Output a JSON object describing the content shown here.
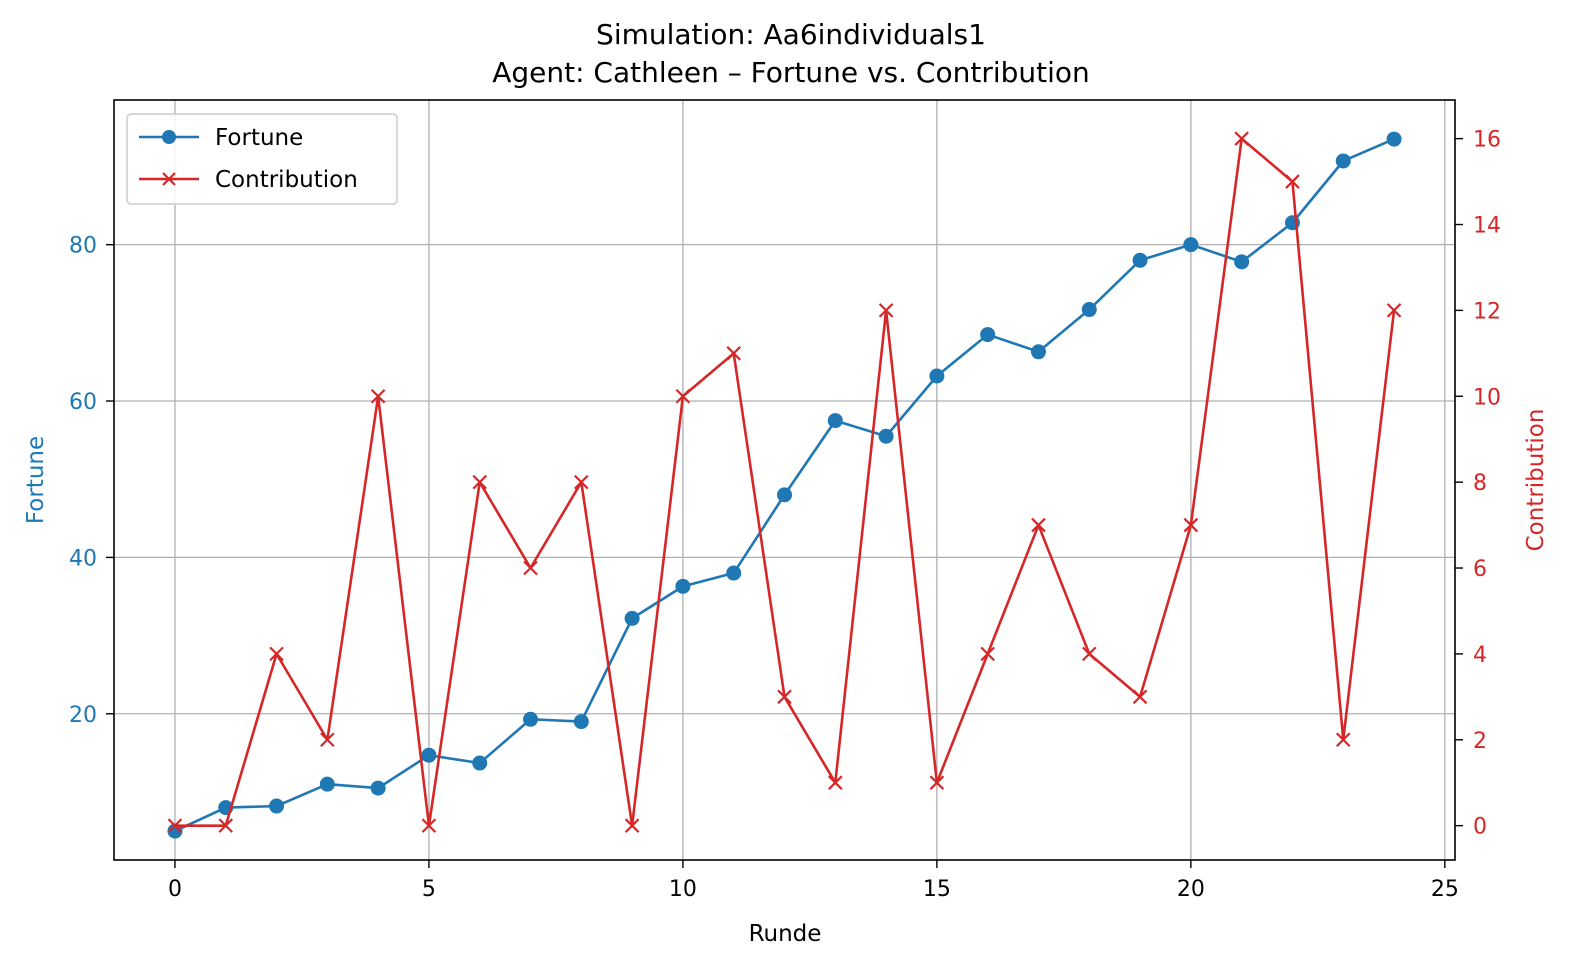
{
  "chart_data": {
    "type": "line",
    "title": "Simulation: Aa6individuals1",
    "subtitle": "Agent: Cathleen – Fortune vs. Contribution",
    "xlabel": "Runde",
    "ylabel_left": "Fortune",
    "ylabel_right": "Contribution",
    "x": [
      0,
      1,
      2,
      3,
      4,
      5,
      6,
      7,
      8,
      9,
      10,
      11,
      12,
      13,
      14,
      15,
      16,
      17,
      18,
      19,
      20,
      21,
      22,
      23,
      24
    ],
    "xlim": [
      -1.2,
      25.2
    ],
    "ylim_left": [
      1.3,
      98.5
    ],
    "ylim_right": [
      -0.8,
      16.9
    ],
    "xticks": [
      0,
      5,
      10,
      15,
      20,
      25
    ],
    "yticks_left": [
      20,
      40,
      60,
      80
    ],
    "yticks_right": [
      0,
      2,
      4,
      6,
      8,
      10,
      12,
      14,
      16
    ],
    "grid": true,
    "legend_position": "upper-left",
    "series": [
      {
        "name": "Fortune",
        "axis": "left",
        "color": "#1f77b4",
        "marker": "circle",
        "values": [
          5.0,
          8.0,
          8.2,
          11.0,
          10.5,
          14.7,
          13.7,
          19.3,
          19.0,
          32.2,
          36.3,
          38.0,
          48.0,
          57.5,
          55.5,
          63.2,
          68.5,
          66.3,
          71.7,
          78.0,
          80.0,
          77.8,
          82.8,
          90.7,
          93.5
        ]
      },
      {
        "name": "Contribution",
        "axis": "right",
        "color": "#d62728",
        "marker": "x",
        "values": [
          0,
          0,
          4,
          2,
          10,
          0,
          8,
          6,
          8,
          0,
          10,
          11,
          3,
          1,
          12,
          1,
          4,
          7,
          4,
          3,
          7,
          16,
          15,
          2,
          12
        ]
      }
    ]
  }
}
